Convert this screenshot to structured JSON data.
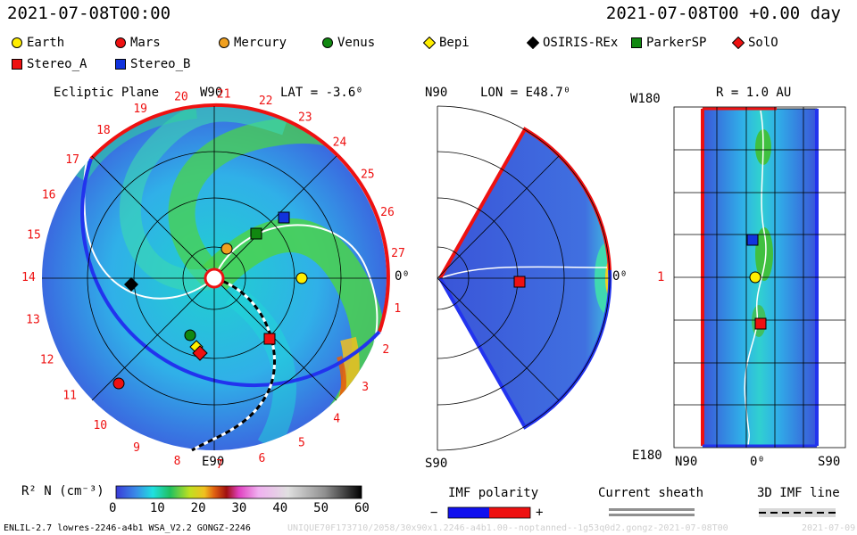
{
  "header": {
    "datetime_left": "2021-07-08T00:00",
    "datetime_right": "2021-07-08T00 +0.00 day"
  },
  "legend": {
    "items": [
      {
        "label": "Earth",
        "marker": "circle",
        "color": "#ffee00"
      },
      {
        "label": "Mars",
        "marker": "circle",
        "color": "#ee1111"
      },
      {
        "label": "Mercury",
        "marker": "circle",
        "color": "#f0a020"
      },
      {
        "label": "Venus",
        "marker": "circle",
        "color": "#118811"
      },
      {
        "label": "Bepi",
        "marker": "diamond",
        "color": "#ffee00"
      },
      {
        "label": "OSIRIS-REx",
        "marker": "diamond",
        "color": "#000000"
      },
      {
        "label": "ParkerSP",
        "marker": "square",
        "color": "#118811"
      },
      {
        "label": "SolO",
        "marker": "diamond",
        "color": "#ee1111"
      },
      {
        "label": "Stereo_A",
        "marker": "square",
        "color": "#ee1111"
      },
      {
        "label": "Stereo_B",
        "marker": "square",
        "color": "#1133dd"
      }
    ]
  },
  "panels": {
    "ecliptic": {
      "title": "Ecliptic Plane",
      "top_label": "W90",
      "bottom_label": "E90",
      "right_label": "0⁰",
      "lat_label": "LAT = -3.6⁰",
      "carrington_ticks": [
        "1",
        "2",
        "3",
        "4",
        "5",
        "6",
        "7",
        "8",
        "9",
        "10",
        "11",
        "12",
        "13",
        "14",
        "15",
        "16",
        "17",
        "18",
        "19",
        "20",
        "21",
        "22",
        "23",
        "24",
        "25",
        "26",
        "27"
      ]
    },
    "meridional": {
      "top_label": "N90",
      "bottom_label": "S90",
      "right_label": "0⁰",
      "lon_label": "LON = E48.7⁰"
    },
    "radial": {
      "title": "R = 1.0 AU",
      "top_left_label": "W180",
      "bottom_left_label": "E180",
      "mid_left_label": "1",
      "x_labels": [
        "N90",
        "0⁰",
        "S90"
      ]
    }
  },
  "colorbar": {
    "label": "R² N (cm⁻³)",
    "ticks": [
      "0",
      "10",
      "20",
      "30",
      "40",
      "50",
      "60"
    ]
  },
  "imf": {
    "polarity_label": "IMF polarity",
    "minus": "−",
    "plus": "+",
    "current_sheath_label": "Current sheath",
    "imf_line_label": "3D IMF line"
  },
  "footer": {
    "left": "ENLIL-2.7 lowres-2246-a4b1 WSA_V2.2 GONGZ-2246",
    "center": "UNIQUE70F173710/2058/30x90x1.2246-a4b1.00--noptanned--1g53q0d2.gongz-2021-07-08T00",
    "right": "2021-07-09"
  }
}
